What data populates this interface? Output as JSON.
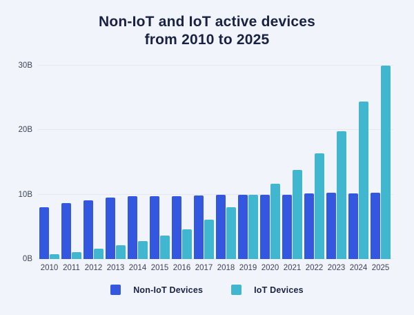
{
  "colors": {
    "background": "#F1F4FB",
    "gridline": "#E3E8F1",
    "title_text": "#1A2244",
    "axis_label": "#3C4354",
    "non_iot_blue": "#3457E0",
    "iot_teal": "#40B7CE"
  },
  "title": {
    "line1": "Non-IoT and IoT active devices",
    "line2": "from 2010 to 2025"
  },
  "legend": {
    "items": [
      {
        "key": "non-iot",
        "label": "Non-IoT Devices",
        "color": "#3457E0"
      },
      {
        "key": "iot",
        "label": "IoT Devices",
        "color": "#40B7CE"
      }
    ]
  },
  "chart_data": {
    "type": "bar",
    "title": "Non-IoT and IoT active devices from 2010 to 2025",
    "categories": [
      "2010",
      "2011",
      "2012",
      "2013",
      "2014",
      "2015",
      "2016",
      "2017",
      "2018",
      "2019",
      "2020",
      "2021",
      "2022",
      "2023",
      "2024",
      "2025"
    ],
    "series": [
      {
        "key": "non-iot",
        "name": "Non-IoT Devices",
        "color": "#3457E0",
        "values": [
          8.0,
          8.7,
          9.1,
          9.5,
          9.8,
          9.8,
          9.8,
          9.9,
          10.0,
          10.0,
          10.0,
          10.0,
          10.2,
          10.3,
          10.2,
          10.3
        ]
      },
      {
        "key": "iot",
        "name": "IoT Devices",
        "color": "#40B7CE",
        "values": [
          0.8,
          1.1,
          1.6,
          2.1,
          2.8,
          3.6,
          4.6,
          6.1,
          8.0,
          10.0,
          11.7,
          13.8,
          16.4,
          19.8,
          24.4,
          30.0
        ]
      }
    ],
    "unit": "billions of devices (B)",
    "xlabel": "",
    "ylabel": "",
    "ylim": [
      0,
      30
    ],
    "yticks": [
      {
        "value": 0,
        "label": "0B"
      },
      {
        "value": 10,
        "label": "10B"
      },
      {
        "value": 20,
        "label": "20B"
      },
      {
        "value": 30,
        "label": "30B"
      }
    ],
    "grid": "horizontal gridlines every 10B",
    "legend_position": "bottom"
  }
}
